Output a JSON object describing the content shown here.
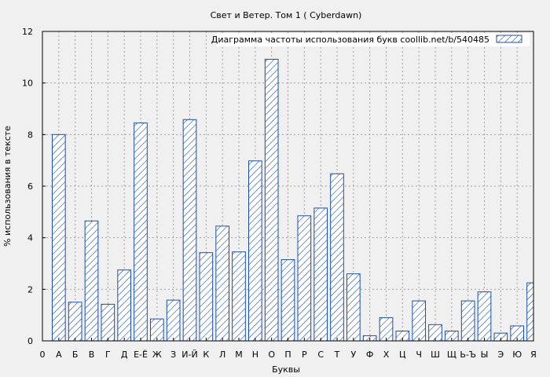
{
  "chart_data": {
    "type": "bar",
    "title": "Свет и Ветер. Том 1 ( Cyberdawn)",
    "xlabel": "Буквы",
    "ylabel": "% использования в тексте",
    "ylim": [
      0,
      12
    ],
    "yticks": [
      "0",
      "2",
      "4",
      "6",
      "8",
      "10",
      "12"
    ],
    "grid": true,
    "legend_position": "top-right",
    "bar_color": "#1c4fa8",
    "series": [
      {
        "name": "Диаграмма частоты использования букв  coollib.net/b/540485"
      }
    ],
    "categories": [
      "0",
      "А",
      "Б",
      "В",
      "Г",
      "Д",
      "Е-Ё",
      "Ж",
      "З",
      "И-Й",
      "К",
      "Л",
      "М",
      "Н",
      "О",
      "П",
      "Р",
      "С",
      "Т",
      "У",
      "Ф",
      "Х",
      "Ц",
      "Ч",
      "Ш",
      "Щ",
      "Ь-Ъ",
      "Ы",
      "Э",
      "Ю",
      "Я"
    ],
    "values": [
      0,
      8.0,
      1.5,
      4.65,
      1.42,
      2.75,
      8.45,
      0.85,
      1.58,
      8.58,
      3.42,
      4.45,
      3.45,
      6.98,
      10.92,
      3.15,
      4.85,
      5.15,
      6.48,
      2.6,
      0.2,
      0.9,
      0.38,
      1.55,
      0.63,
      0.38,
      1.55,
      1.9,
      0.3,
      0.58,
      2.25
    ]
  }
}
